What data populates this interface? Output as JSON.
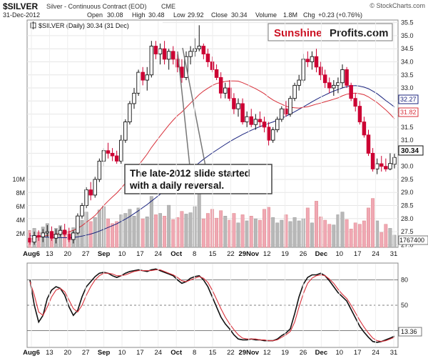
{
  "header": {
    "symbol": "$SILVER",
    "description": "Silver - Continuous Contract (EOD)",
    "exchange": "CME",
    "date": "31-Dec-2012",
    "open_label": "Open",
    "open": "30.08",
    "high_label": "High",
    "high": "30.48",
    "low_label": "Low",
    "low": "29.92",
    "close_label": "Close",
    "close": "30.34",
    "volume_label": "Volume",
    "volume": "1.8M",
    "chg_label": "Chg",
    "chg": "+0.23 (+0.76%)",
    "copyright": "© StockCharts.com"
  },
  "legend": {
    "price": "$SILVER (Daily) 30.34 (31 Dec)"
  },
  "logo": {
    "part1": "Sunshine",
    "part2": "Profits.com"
  },
  "annotation": {
    "line1": "The late-2012 slide started",
    "line2": "with a daily reversal."
  },
  "badges": {
    "ma_upper": "32.27",
    "ma_lower": "31.82",
    "last_price": "30.34",
    "volume": "1767400",
    "stoch": "13.36"
  },
  "colors": {
    "up": "#111111",
    "down": "#cc0033",
    "ma_short": "#d8303a",
    "ma_long": "#1a237e",
    "vol_up": "#b8b8b8",
    "vol_down": "#f0a8b4",
    "badge_blue": "#1a237e",
    "badge_red": "#d8303a",
    "logo_red": "#cc1122"
  },
  "chart_data": [
    {
      "type": "candlestick",
      "series_label": "$SILVER (Daily)",
      "x_tick_labels": [
        "Aug6",
        "13",
        "20",
        "27",
        "Sep",
        "10",
        "17",
        "24",
        "Oct",
        "8",
        "15",
        "22",
        "29Nov",
        "12",
        "19",
        "26",
        "Dec",
        "10",
        "17",
        "24",
        "31"
      ],
      "y_tick_labels": [
        "27.0",
        "27.5",
        "28.0",
        "28.5",
        "29.0",
        "29.5",
        "30.0",
        "30.5",
        "31.0",
        "31.5",
        "32.0",
        "32.5",
        "33.0",
        "33.5",
        "34.0",
        "34.5",
        "35.0",
        "35.5"
      ],
      "ylim": [
        26.9,
        35.6
      ],
      "candles": [
        {
          "o": 27.25,
          "h": 27.45,
          "l": 27.0,
          "c": 27.1
        },
        {
          "o": 27.1,
          "h": 27.5,
          "l": 27.0,
          "c": 27.35
        },
        {
          "o": 27.35,
          "h": 27.55,
          "l": 27.15,
          "c": 27.3
        },
        {
          "o": 27.3,
          "h": 27.6,
          "l": 27.1,
          "c": 27.45
        },
        {
          "o": 27.45,
          "h": 27.75,
          "l": 27.3,
          "c": 27.5
        },
        {
          "o": 27.5,
          "h": 27.7,
          "l": 27.15,
          "c": 27.25
        },
        {
          "o": 27.25,
          "h": 27.6,
          "l": 27.05,
          "c": 27.4
        },
        {
          "o": 27.4,
          "h": 27.7,
          "l": 27.3,
          "c": 27.55
        },
        {
          "o": 27.55,
          "h": 27.8,
          "l": 27.3,
          "c": 27.4
        },
        {
          "o": 27.4,
          "h": 27.65,
          "l": 27.1,
          "c": 27.2
        },
        {
          "o": 27.2,
          "h": 27.55,
          "l": 27.05,
          "c": 27.45
        },
        {
          "o": 27.45,
          "h": 28.2,
          "l": 27.4,
          "c": 28.1
        },
        {
          "o": 28.1,
          "h": 28.6,
          "l": 28.0,
          "c": 28.5
        },
        {
          "o": 28.5,
          "h": 29.2,
          "l": 28.4,
          "c": 29.1
        },
        {
          "o": 29.1,
          "h": 29.4,
          "l": 28.7,
          "c": 28.9
        },
        {
          "o": 28.9,
          "h": 29.6,
          "l": 28.8,
          "c": 29.5
        },
        {
          "o": 29.5,
          "h": 30.3,
          "l": 29.4,
          "c": 30.2
        },
        {
          "o": 30.2,
          "h": 30.7,
          "l": 30.0,
          "c": 30.6
        },
        {
          "o": 30.6,
          "h": 30.9,
          "l": 30.3,
          "c": 30.5
        },
        {
          "o": 30.5,
          "h": 30.7,
          "l": 30.2,
          "c": 30.4
        },
        {
          "o": 30.4,
          "h": 30.6,
          "l": 30.1,
          "c": 30.2
        },
        {
          "o": 30.2,
          "h": 31.2,
          "l": 30.1,
          "c": 31.0
        },
        {
          "o": 31.0,
          "h": 31.8,
          "l": 30.9,
          "c": 31.7
        },
        {
          "o": 31.7,
          "h": 32.5,
          "l": 31.6,
          "c": 32.4
        },
        {
          "o": 32.4,
          "h": 33.0,
          "l": 32.2,
          "c": 32.8
        },
        {
          "o": 32.8,
          "h": 33.7,
          "l": 32.7,
          "c": 33.6
        },
        {
          "o": 33.6,
          "h": 33.8,
          "l": 33.1,
          "c": 33.3
        },
        {
          "o": 33.3,
          "h": 33.8,
          "l": 32.9,
          "c": 33.5
        },
        {
          "o": 33.5,
          "h": 34.8,
          "l": 33.4,
          "c": 34.6
        },
        {
          "o": 34.6,
          "h": 34.8,
          "l": 34.1,
          "c": 34.3
        },
        {
          "o": 34.3,
          "h": 34.7,
          "l": 33.9,
          "c": 34.5
        },
        {
          "o": 34.5,
          "h": 34.8,
          "l": 33.9,
          "c": 34.1
        },
        {
          "o": 34.1,
          "h": 34.5,
          "l": 33.7,
          "c": 34.4
        },
        {
          "o": 34.4,
          "h": 34.6,
          "l": 33.9,
          "c": 34.1
        },
        {
          "o": 34.1,
          "h": 34.3,
          "l": 33.6,
          "c": 33.8
        },
        {
          "o": 33.8,
          "h": 34.1,
          "l": 33.2,
          "c": 33.4
        },
        {
          "o": 33.4,
          "h": 34.4,
          "l": 33.3,
          "c": 34.2
        },
        {
          "o": 34.2,
          "h": 34.6,
          "l": 33.9,
          "c": 34.4
        },
        {
          "o": 34.4,
          "h": 34.9,
          "l": 34.2,
          "c": 34.5
        },
        {
          "o": 34.5,
          "h": 35.4,
          "l": 34.4,
          "c": 34.6
        },
        {
          "o": 34.6,
          "h": 34.7,
          "l": 34.1,
          "c": 34.3
        },
        {
          "o": 34.3,
          "h": 34.5,
          "l": 33.8,
          "c": 34.0
        },
        {
          "o": 34.0,
          "h": 34.2,
          "l": 33.6,
          "c": 33.7
        },
        {
          "o": 33.7,
          "h": 33.9,
          "l": 33.3,
          "c": 33.4
        },
        {
          "o": 33.4,
          "h": 33.6,
          "l": 32.6,
          "c": 32.8
        },
        {
          "o": 32.8,
          "h": 33.2,
          "l": 32.6,
          "c": 33.0
        },
        {
          "o": 33.0,
          "h": 33.3,
          "l": 32.5,
          "c": 32.6
        },
        {
          "o": 32.6,
          "h": 32.8,
          "l": 32.0,
          "c": 32.2
        },
        {
          "o": 32.2,
          "h": 32.6,
          "l": 31.9,
          "c": 32.4
        },
        {
          "o": 32.4,
          "h": 32.6,
          "l": 31.6,
          "c": 31.7
        },
        {
          "o": 31.7,
          "h": 32.1,
          "l": 31.5,
          "c": 31.9
        },
        {
          "o": 31.9,
          "h": 32.2,
          "l": 31.5,
          "c": 31.6
        },
        {
          "o": 31.6,
          "h": 32.0,
          "l": 31.4,
          "c": 31.8
        },
        {
          "o": 31.8,
          "h": 32.1,
          "l": 31.5,
          "c": 31.7
        },
        {
          "o": 31.7,
          "h": 31.9,
          "l": 31.3,
          "c": 31.5
        },
        {
          "o": 31.5,
          "h": 31.7,
          "l": 30.8,
          "c": 31.0
        },
        {
          "o": 31.0,
          "h": 31.5,
          "l": 30.9,
          "c": 31.4
        },
        {
          "o": 31.4,
          "h": 31.9,
          "l": 31.3,
          "c": 31.8
        },
        {
          "o": 31.8,
          "h": 32.3,
          "l": 31.7,
          "c": 32.2
        },
        {
          "o": 32.2,
          "h": 32.5,
          "l": 31.9,
          "c": 32.0
        },
        {
          "o": 32.0,
          "h": 32.7,
          "l": 31.9,
          "c": 32.6
        },
        {
          "o": 32.6,
          "h": 33.2,
          "l": 32.5,
          "c": 33.1
        },
        {
          "o": 33.1,
          "h": 33.5,
          "l": 32.9,
          "c": 33.3
        },
        {
          "o": 33.3,
          "h": 34.3,
          "l": 33.2,
          "c": 34.1
        },
        {
          "o": 34.1,
          "h": 34.4,
          "l": 33.8,
          "c": 34.0
        },
        {
          "o": 34.0,
          "h": 34.4,
          "l": 33.7,
          "c": 34.2
        },
        {
          "o": 34.2,
          "h": 34.5,
          "l": 33.6,
          "c": 33.8
        },
        {
          "o": 33.8,
          "h": 34.0,
          "l": 33.3,
          "c": 33.5
        },
        {
          "o": 33.5,
          "h": 33.7,
          "l": 33.0,
          "c": 33.2
        },
        {
          "o": 33.2,
          "h": 33.4,
          "l": 32.8,
          "c": 33.0
        },
        {
          "o": 33.0,
          "h": 33.3,
          "l": 32.7,
          "c": 33.1
        },
        {
          "o": 33.1,
          "h": 33.4,
          "l": 32.8,
          "c": 33.2
        },
        {
          "o": 33.2,
          "h": 33.9,
          "l": 33.0,
          "c": 33.7
        },
        {
          "o": 33.7,
          "h": 33.8,
          "l": 33.0,
          "c": 33.1
        },
        {
          "o": 33.1,
          "h": 33.2,
          "l": 32.5,
          "c": 32.6
        },
        {
          "o": 32.6,
          "h": 32.8,
          "l": 32.1,
          "c": 32.3
        },
        {
          "o": 32.3,
          "h": 32.5,
          "l": 31.6,
          "c": 31.7
        },
        {
          "o": 31.7,
          "h": 31.9,
          "l": 31.1,
          "c": 31.2
        },
        {
          "o": 31.2,
          "h": 31.4,
          "l": 30.4,
          "c": 30.5
        },
        {
          "o": 30.5,
          "h": 30.7,
          "l": 29.8,
          "c": 29.9
        },
        {
          "o": 29.9,
          "h": 30.3,
          "l": 29.7,
          "c": 30.1
        },
        {
          "o": 30.1,
          "h": 30.4,
          "l": 29.8,
          "c": 30.0
        },
        {
          "o": 30.0,
          "h": 30.3,
          "l": 29.8,
          "c": 29.9
        },
        {
          "o": 29.9,
          "h": 30.5,
          "l": 29.85,
          "c": 30.11
        },
        {
          "o": 30.08,
          "h": 30.48,
          "l": 29.92,
          "c": 30.34
        }
      ],
      "volume_labels": [
        "10M",
        "8M",
        "6M",
        "4M",
        "2M"
      ],
      "volume_max_m": 12,
      "volume_m": [
        2.5,
        2.8,
        2.2,
        3.0,
        3.5,
        2.4,
        2.8,
        3.2,
        2.6,
        2.3,
        2.9,
        4.5,
        4.0,
        5.2,
        3.8,
        4.4,
        5.5,
        6.0,
        4.2,
        3.5,
        3.8,
        4.8,
        5.0,
        5.6,
        4.6,
        5.8,
        4.2,
        4.5,
        7.5,
        4.8,
        5.0,
        4.6,
        6.2,
        4.1,
        4.4,
        5.3,
        4.9,
        5.1,
        6.0,
        8.8,
        4.2,
        5.0,
        5.6,
        4.3,
        5.4,
        4.6,
        4.0,
        5.0,
        3.6,
        4.8,
        3.9,
        4.6,
        4.2,
        4.0,
        5.6,
        5.9,
        4.4,
        3.6,
        4.0,
        4.8,
        3.8,
        4.4,
        3.9,
        4.2,
        5.8,
        3.6,
        6.8,
        4.5,
        4.0,
        3.4,
        3.3,
        4.8,
        5.2,
        4.1,
        2.7,
        3.6,
        3.4,
        3.9,
        5.8,
        7.2,
        3.9,
        2.2,
        3.4,
        2.8,
        1.8
      ],
      "ma_short": [
        27.2,
        27.25,
        27.3,
        27.32,
        27.36,
        27.38,
        27.4,
        27.44,
        27.47,
        27.5,
        27.55,
        27.63,
        27.73,
        27.86,
        27.98,
        28.12,
        28.3,
        28.5,
        28.67,
        28.83,
        28.98,
        29.16,
        29.36,
        29.58,
        29.8,
        30.04,
        30.25,
        30.47,
        30.72,
        30.94,
        31.16,
        31.37,
        31.58,
        31.77,
        31.94,
        32.08,
        32.25,
        32.42,
        32.58,
        32.75,
        32.88,
        32.99,
        33.09,
        33.17,
        33.21,
        33.25,
        33.27,
        33.27,
        33.26,
        33.2,
        33.13,
        33.05,
        32.97,
        32.88,
        32.78,
        32.65,
        32.54,
        32.45,
        32.38,
        32.3,
        32.26,
        32.24,
        32.23,
        32.26,
        32.28,
        32.33,
        32.38,
        32.42,
        32.47,
        32.52,
        32.57,
        32.62,
        32.7,
        32.76,
        32.79,
        32.8,
        32.78,
        32.74,
        32.66,
        32.55,
        32.44,
        32.3,
        32.16,
        32.0,
        31.82
      ],
      "ma_long": [
        27.35,
        27.33,
        27.31,
        27.3,
        27.29,
        27.28,
        27.27,
        27.27,
        27.27,
        27.27,
        27.28,
        27.3,
        27.33,
        27.37,
        27.41,
        27.46,
        27.52,
        27.59,
        27.66,
        27.73,
        27.8,
        27.89,
        27.98,
        28.08,
        28.19,
        28.3,
        28.42,
        28.54,
        28.67,
        28.8,
        28.93,
        29.07,
        29.2,
        29.34,
        29.47,
        29.6,
        29.74,
        29.87,
        30.0,
        30.14,
        30.27,
        30.39,
        30.51,
        30.62,
        30.73,
        30.84,
        30.94,
        31.04,
        31.13,
        31.22,
        31.3,
        31.38,
        31.45,
        31.52,
        31.58,
        31.64,
        31.7,
        31.77,
        31.84,
        31.92,
        32.0,
        32.09,
        32.18,
        32.28,
        32.37,
        32.47,
        32.56,
        32.65,
        32.73,
        32.81,
        32.88,
        32.94,
        33.0,
        33.05,
        33.08,
        33.09,
        33.07,
        33.03,
        32.97,
        32.88,
        32.78,
        32.65,
        32.52,
        32.4,
        32.27
      ]
    },
    {
      "type": "line",
      "x_tick_labels": [
        "Aug6",
        "13",
        "20",
        "27",
        "Sep",
        "10",
        "17",
        "24",
        "Oct",
        "8",
        "15",
        "22",
        "29Nov",
        "12",
        "19",
        "26",
        "Dec",
        "10",
        "17",
        "24",
        "31"
      ],
      "y_tick_labels": [
        "80",
        "50",
        "20"
      ],
      "ylim": [
        0,
        100
      ],
      "reference_lines": [
        80,
        50,
        20
      ],
      "series": [
        {
          "values": [
            80,
            50,
            30,
            38,
            58,
            68,
            72,
            70,
            62,
            48,
            38,
            44,
            60,
            72,
            78,
            84,
            88,
            89,
            88,
            85,
            83,
            85,
            88,
            90,
            91,
            92,
            91,
            90,
            92,
            93,
            91,
            89,
            87,
            85,
            80,
            76,
            78,
            82,
            84,
            85,
            80,
            72,
            60,
            48,
            36,
            28,
            22,
            15,
            10,
            9,
            9,
            10,
            9,
            9,
            8,
            8,
            8,
            10,
            14,
            17,
            22,
            40,
            60,
            75,
            83,
            86,
            86,
            88,
            85,
            79,
            72,
            65,
            60,
            55,
            45,
            35,
            25,
            18,
            12,
            7,
            6,
            7,
            9,
            11,
            13.36
          ]
        },
        {
          "values": [
            78,
            62,
            42,
            38,
            48,
            60,
            68,
            70,
            66,
            56,
            46,
            42,
            50,
            62,
            72,
            80,
            85,
            88,
            88,
            87,
            85,
            85,
            86,
            88,
            90,
            91,
            91,
            91,
            91,
            92,
            92,
            90,
            88,
            86,
            83,
            79,
            78,
            80,
            82,
            84,
            82,
            77,
            68,
            57,
            46,
            36,
            28,
            21,
            15,
            11,
            10,
            10,
            10,
            9,
            9,
            8,
            8,
            9,
            12,
            15,
            19,
            30,
            48,
            64,
            76,
            82,
            85,
            86,
            85,
            81,
            76,
            69,
            63,
            58,
            50,
            41,
            32,
            24,
            17,
            11,
            8,
            7,
            8,
            10,
            12
          ]
        }
      ]
    }
  ]
}
